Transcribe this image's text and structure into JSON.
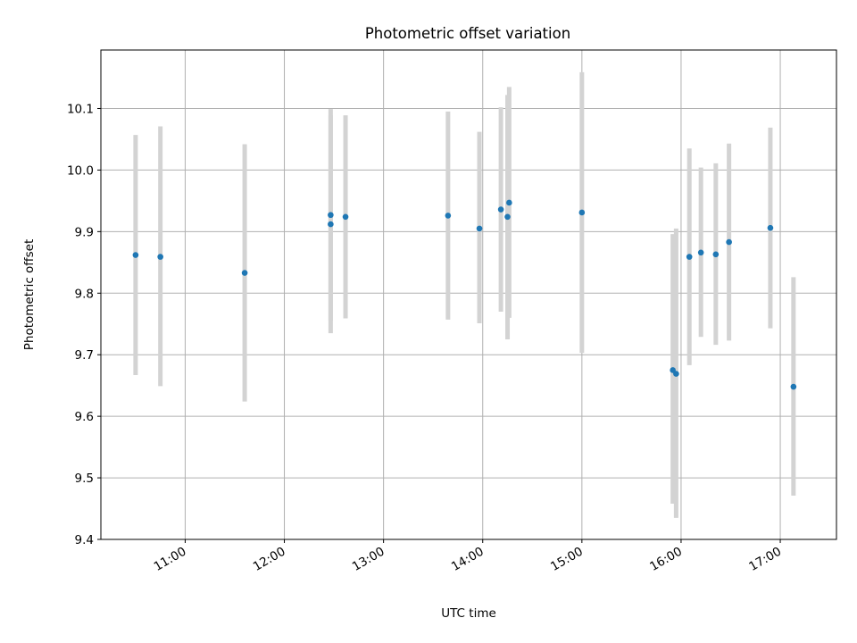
{
  "chart_data": {
    "type": "scatter",
    "title": "Photometric offset variation",
    "xlabel": "UTC time",
    "ylabel": "Photometric offset",
    "x_axis_type": "time",
    "xlim": [
      "10:09",
      "17:34"
    ],
    "ylim": [
      9.4,
      10.195
    ],
    "x_ticks": [
      "11:00",
      "12:00",
      "13:00",
      "14:00",
      "15:00",
      "16:00",
      "17:00"
    ],
    "y_ticks": [
      "9.4",
      "9.5",
      "9.6",
      "9.7",
      "9.8",
      "9.9",
      "10.0",
      "10.1"
    ],
    "grid": true,
    "marker_color": "#1f77b4",
    "errorbar_color": "#d3d3d3",
    "points": [
      {
        "x": "10:30",
        "y": 9.862,
        "ylo": 9.667,
        "yhi": 10.057
      },
      {
        "x": "10:45",
        "y": 9.859,
        "ylo": 9.649,
        "yhi": 10.071
      },
      {
        "x": "11:36",
        "y": 9.833,
        "ylo": 9.624,
        "yhi": 10.042
      },
      {
        "x": "12:28",
        "y": 9.912,
        "ylo": 9.735,
        "yhi": 10.089
      },
      {
        "x": "12:28",
        "y": 9.927,
        "ylo": 9.755,
        "yhi": 10.099
      },
      {
        "x": "12:37",
        "y": 9.924,
        "ylo": 9.759,
        "yhi": 10.089
      },
      {
        "x": "13:39",
        "y": 9.926,
        "ylo": 9.757,
        "yhi": 10.095
      },
      {
        "x": "13:58",
        "y": 9.905,
        "ylo": 9.751,
        "yhi": 10.062
      },
      {
        "x": "14:11",
        "y": 9.936,
        "ylo": 9.77,
        "yhi": 10.102
      },
      {
        "x": "14:15",
        "y": 9.924,
        "ylo": 9.725,
        "yhi": 10.122
      },
      {
        "x": "14:16",
        "y": 9.947,
        "ylo": 9.76,
        "yhi": 10.135
      },
      {
        "x": "15:00",
        "y": 9.931,
        "ylo": 9.703,
        "yhi": 10.159
      },
      {
        "x": "15:55",
        "y": 9.675,
        "ylo": 9.458,
        "yhi": 9.896
      },
      {
        "x": "15:57",
        "y": 9.669,
        "ylo": 9.435,
        "yhi": 9.905
      },
      {
        "x": "16:05",
        "y": 9.859,
        "ylo": 9.683,
        "yhi": 10.035
      },
      {
        "x": "16:12",
        "y": 9.866,
        "ylo": 9.729,
        "yhi": 10.004
      },
      {
        "x": "16:21",
        "y": 9.863,
        "ylo": 9.716,
        "yhi": 10.011
      },
      {
        "x": "16:29",
        "y": 9.883,
        "ylo": 9.723,
        "yhi": 10.043
      },
      {
        "x": "16:54",
        "y": 9.906,
        "ylo": 9.743,
        "yhi": 10.069
      },
      {
        "x": "17:08",
        "y": 9.648,
        "ylo": 9.471,
        "yhi": 9.826
      }
    ]
  }
}
